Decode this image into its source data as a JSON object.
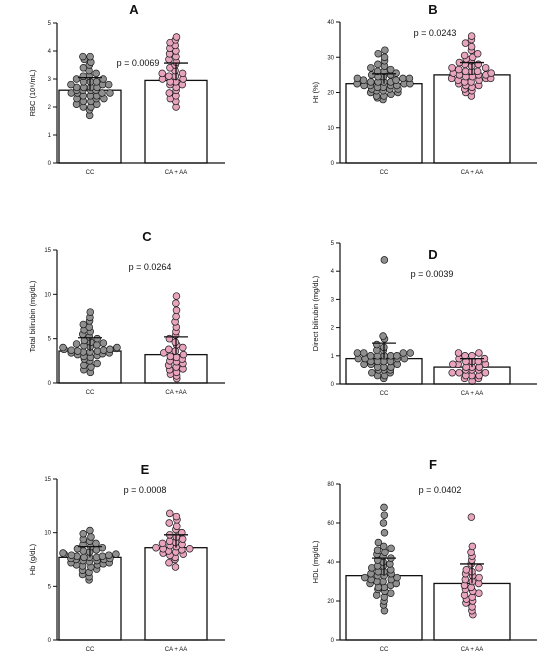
{
  "chart_data": [
    {
      "type": "bar",
      "panel": "A",
      "categories": [
        "CC",
        "CA + AA"
      ],
      "values": [
        2.6,
        2.95
      ],
      "error_sd": [
        0.45,
        0.62
      ],
      "ylabel": "RBC (10⁶/mL)",
      "ylim": [
        0,
        5
      ],
      "yticks": [
        "0",
        "1",
        "2",
        "3",
        "4",
        "5"
      ],
      "annotation": "p = 0.0069",
      "points": [
        [
          1.7,
          1.9,
          2.0,
          2.0,
          2.1,
          2.1,
          2.2,
          2.2,
          2.3,
          2.3,
          2.3,
          2.4,
          2.4,
          2.4,
          2.5,
          2.5,
          2.5,
          2.5,
          2.6,
          2.6,
          2.6,
          2.6,
          2.7,
          2.7,
          2.7,
          2.7,
          2.8,
          2.8,
          2.8,
          2.9,
          2.9,
          2.9,
          3.0,
          3.0,
          3.1,
          3.1,
          3.2,
          3.3,
          3.4,
          3.5,
          3.6,
          3.7,
          3.8,
          3.8
        ],
        [
          2.0,
          2.2,
          2.3,
          2.4,
          2.5,
          2.6,
          2.7,
          2.8,
          2.8,
          2.9,
          2.9,
          3.0,
          3.0,
          3.1,
          3.1,
          3.2,
          3.2,
          3.3,
          3.4,
          3.5,
          3.6,
          3.7,
          3.8,
          3.9,
          4.0,
          4.1,
          4.2,
          4.3,
          4.4,
          4.5
        ]
      ]
    },
    {
      "type": "bar",
      "panel": "B",
      "categories": [
        "CC",
        "CA + AA"
      ],
      "values": [
        22.5,
        25.0
      ],
      "error_sd": [
        2.8,
        3.5
      ],
      "ylabel": "Ht (%)",
      "ylim": [
        0,
        40
      ],
      "yticks": [
        "0",
        "10",
        "20",
        "30",
        "40"
      ],
      "annotation": "p = 0.0243",
      "points": [
        [
          18,
          18.5,
          19,
          19,
          19.5,
          20,
          20,
          20.5,
          20.5,
          21,
          21,
          21,
          21.5,
          21.5,
          22,
          22,
          22,
          22,
          22.5,
          22.5,
          22.5,
          23,
          23,
          23,
          23,
          23.5,
          23.5,
          24,
          24,
          24,
          24.5,
          24.5,
          25,
          25,
          25.5,
          26,
          26,
          26.5,
          27,
          27.5,
          28,
          29,
          30,
          31,
          32
        ],
        [
          19,
          20,
          20.5,
          21,
          21.5,
          22,
          22,
          22.5,
          23,
          23,
          23.5,
          23.5,
          24,
          24,
          24,
          24.5,
          24.5,
          25,
          25,
          25,
          25.5,
          25.5,
          26,
          26,
          26,
          26.5,
          27,
          27,
          27.5,
          28,
          28,
          28.5,
          29,
          29.5,
          30,
          30.5,
          31,
          32,
          33,
          34,
          35,
          36
        ]
      ]
    },
    {
      "type": "bar",
      "panel": "C",
      "categories": [
        "CC",
        "CA +AA"
      ],
      "values": [
        3.6,
        3.2
      ],
      "error_sd": [
        1.5,
        2.0
      ],
      "ylabel": "Total bilirubin (mg/dL)",
      "ylim": [
        0,
        15
      ],
      "yticks": [
        "0",
        "5",
        "10",
        "15"
      ],
      "annotation": "p = 0.0264",
      "points": [
        [
          1.2,
          1.5,
          1.8,
          2.0,
          2.2,
          2.5,
          2.7,
          2.9,
          3.0,
          3.1,
          3.2,
          3.3,
          3.4,
          3.4,
          3.5,
          3.5,
          3.6,
          3.6,
          3.7,
          3.7,
          3.8,
          3.8,
          3.9,
          4.0,
          4.0,
          4.1,
          4.2,
          4.3,
          4.4,
          4.5,
          4.6,
          4.8,
          5.0,
          5.2,
          5.5,
          5.8,
          6.0,
          6.3,
          6.6,
          7.0,
          7.4,
          8.0
        ],
        [
          0.5,
          0.8,
          1.0,
          1.2,
          1.5,
          1.6,
          1.8,
          2.0,
          2.2,
          2.4,
          2.5,
          2.7,
          2.9,
          3.0,
          3.2,
          3.4,
          3.6,
          3.8,
          4.0,
          4.3,
          4.6,
          5.0,
          5.4,
          5.8,
          6.3,
          6.9,
          7.5,
          8.2,
          9.0,
          9.8
        ]
      ]
    },
    {
      "type": "bar",
      "panel": "D",
      "categories": [
        "CC",
        "CA + AA"
      ],
      "values": [
        0.9,
        0.6
      ],
      "error_sd": [
        0.55,
        0.3
      ],
      "ylabel": "Direct bilirubin (mg/dL)",
      "ylim": [
        0,
        5
      ],
      "yticks": [
        "0",
        "1",
        "2",
        "3",
        "4",
        "5"
      ],
      "annotation": "p = 0.0039",
      "points": [
        [
          0.2,
          0.3,
          0.3,
          0.4,
          0.4,
          0.5,
          0.5,
          0.5,
          0.6,
          0.6,
          0.6,
          0.7,
          0.7,
          0.7,
          0.8,
          0.8,
          0.8,
          0.8,
          0.9,
          0.9,
          0.9,
          0.9,
          1.0,
          1.0,
          1.0,
          1.0,
          1.0,
          1.1,
          1.1,
          1.1,
          1.1,
          1.2,
          1.2,
          1.3,
          1.4,
          1.6,
          1.7,
          4.4
        ],
        [
          0.1,
          0.2,
          0.2,
          0.3,
          0.3,
          0.3,
          0.4,
          0.4,
          0.4,
          0.5,
          0.5,
          0.5,
          0.6,
          0.6,
          0.6,
          0.7,
          0.7,
          0.7,
          0.8,
          0.8,
          0.8,
          0.9,
          0.9,
          1.0,
          1.0,
          1.1,
          1.1
        ]
      ]
    },
    {
      "type": "bar",
      "panel": "E",
      "categories": [
        "CC",
        "CA + AA"
      ],
      "values": [
        7.7,
        8.6
      ],
      "error_sd": [
        1.0,
        1.2
      ],
      "ylabel": "Hb (g/dL)",
      "ylim": [
        0,
        15
      ],
      "yticks": [
        "0",
        "5",
        "10",
        "15"
      ],
      "annotation": "p = 0.0008",
      "points": [
        [
          5.6,
          5.9,
          6.1,
          6.3,
          6.5,
          6.6,
          6.8,
          6.9,
          7.0,
          7.0,
          7.1,
          7.2,
          7.2,
          7.3,
          7.4,
          7.4,
          7.5,
          7.5,
          7.6,
          7.6,
          7.7,
          7.7,
          7.7,
          7.8,
          7.8,
          7.9,
          7.9,
          8.0,
          8.0,
          8.1,
          8.2,
          8.3,
          8.4,
          8.5,
          8.6,
          8.7,
          8.9,
          9.0,
          9.2,
          9.4,
          9.6,
          9.9,
          10.2
        ],
        [
          6.8,
          7.2,
          7.5,
          7.7,
          7.9,
          8.0,
          8.1,
          8.2,
          8.3,
          8.4,
          8.5,
          8.5,
          8.6,
          8.7,
          8.8,
          8.9,
          9.0,
          9.1,
          9.2,
          9.4,
          9.6,
          9.8,
          10.0,
          10.3,
          10.6,
          10.9,
          11.2,
          11.5,
          11.8
        ]
      ]
    },
    {
      "type": "bar",
      "panel": "F",
      "categories": [
        "CC",
        "CA + AA"
      ],
      "values": [
        33,
        29
      ],
      "error_sd": [
        9,
        10
      ],
      "ylabel": "HDL (mg/dL)",
      "ylim": [
        0,
        80
      ],
      "yticks": [
        "0",
        "20",
        "40",
        "60",
        "80"
      ],
      "annotation": "p = 0.0402",
      "points": [
        [
          15,
          18,
          20,
          22,
          23,
          24,
          25,
          26,
          27,
          27,
          28,
          29,
          29,
          30,
          30,
          31,
          31,
          32,
          32,
          33,
          33,
          34,
          34,
          35,
          35,
          36,
          37,
          38,
          38,
          39,
          40,
          41,
          42,
          43,
          44,
          45,
          46,
          47,
          48,
          50,
          55,
          60,
          64,
          68
        ],
        [
          13,
          15,
          17,
          19,
          20,
          21,
          22,
          23,
          24,
          25,
          26,
          27,
          28,
          29,
          30,
          31,
          32,
          33,
          34,
          35,
          36,
          37,
          39,
          41,
          43,
          45,
          48,
          63
        ]
      ]
    }
  ],
  "colors": {
    "group1_fill": "#8f8f8f",
    "group2_fill": "#e8a3bd",
    "axis": "#111111",
    "bar_fill": "#ffffff"
  }
}
